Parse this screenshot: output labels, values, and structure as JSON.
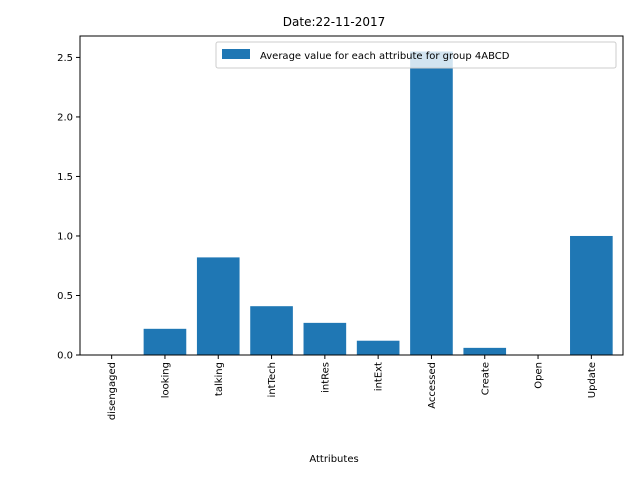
{
  "chart_data": {
    "type": "bar",
    "title": "Date:22-11-2017",
    "xlabel": "Attributes",
    "ylabel": "",
    "categories": [
      "disengaged",
      "looking",
      "talking",
      "intTech",
      "intRes",
      "intExt",
      "Accessed",
      "Create",
      "Open",
      "Update"
    ],
    "series": [
      {
        "name": "Average value for each attribute for group 4ABCD",
        "values": [
          0.0,
          0.22,
          0.82,
          0.41,
          0.27,
          0.12,
          2.55,
          0.06,
          0.0,
          1.0
        ],
        "color": "#1f77b4"
      }
    ],
    "ylim": [
      0,
      2.68
    ],
    "yticks": [
      0.0,
      0.5,
      1.0,
      1.5,
      2.0,
      2.5
    ],
    "ytick_labels": [
      "0.0",
      "0.5",
      "1.0",
      "1.5",
      "2.0",
      "2.5"
    ],
    "grid": false,
    "legend": "top-right"
  }
}
